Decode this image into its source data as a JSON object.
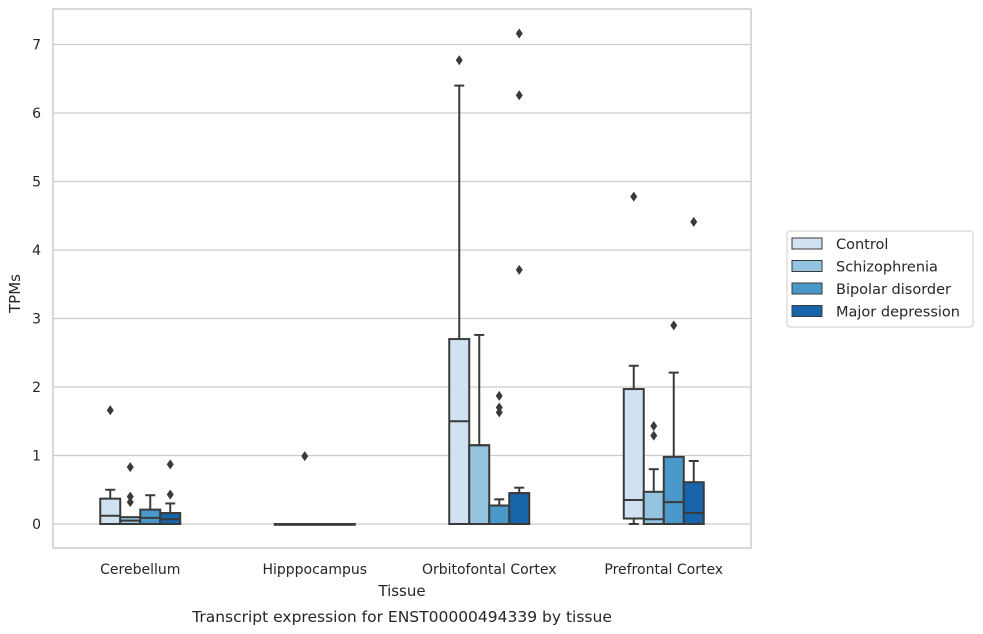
{
  "caption": "Transcript expression for ENST00000494339 by tissue",
  "chart_data": {
    "type": "box",
    "xlabel": "Tissue",
    "ylabel": "TPMs",
    "ylim": [
      -0.35,
      7.5
    ],
    "yticks": [
      0,
      1,
      2,
      3,
      4,
      5,
      6,
      7
    ],
    "grid": "horizontal",
    "legend_position": "right",
    "categories": [
      "Cerebellum",
      "Hipppocampus",
      "Orbitofontal Cortex",
      "Prefrontal Cortex"
    ],
    "series": [
      {
        "name": "Control",
        "color": "#d0e1f2",
        "boxes": [
          {
            "q1": 0.0,
            "median": 0.12,
            "q3": 0.37,
            "whisker_low": 0.0,
            "whisker_high": 0.5,
            "outliers": [
              1.66
            ]
          },
          {
            "q1": 0.0,
            "median": 0.0,
            "q3": 0.0,
            "whisker_low": 0.0,
            "whisker_high": 0.0,
            "outliers": []
          },
          {
            "q1": 0.0,
            "median": 1.5,
            "q3": 2.7,
            "whisker_low": 0.0,
            "whisker_high": 6.4,
            "outliers": [
              6.77
            ]
          },
          {
            "q1": 0.08,
            "median": 0.35,
            "q3": 1.97,
            "whisker_low": 0.0,
            "whisker_high": 2.31,
            "outliers": [
              4.78
            ]
          }
        ]
      },
      {
        "name": "Schizophrenia",
        "color": "#94c4df",
        "boxes": [
          {
            "q1": 0.0,
            "median": 0.05,
            "q3": 0.1,
            "whisker_low": 0.0,
            "whisker_high": 0.1,
            "outliers": [
              0.83,
              0.4,
              0.32
            ]
          },
          {
            "q1": 0.0,
            "median": 0.0,
            "q3": 0.0,
            "whisker_low": 0.0,
            "whisker_high": 0.0,
            "outliers": [
              0.99
            ]
          },
          {
            "q1": 0.0,
            "median": 1.15,
            "q3": 1.15,
            "whisker_low": 0.0,
            "whisker_high": 2.76,
            "outliers": []
          },
          {
            "q1": 0.0,
            "median": 0.07,
            "q3": 0.47,
            "whisker_low": 0.0,
            "whisker_high": 0.8,
            "outliers": [
              1.43,
              1.29
            ]
          }
        ]
      },
      {
        "name": "Bipolar disorder",
        "color": "#4a98c9",
        "boxes": [
          {
            "q1": 0.0,
            "median": 0.09,
            "q3": 0.21,
            "whisker_low": 0.0,
            "whisker_high": 0.42,
            "outliers": []
          },
          {
            "q1": 0.0,
            "median": 0.0,
            "q3": 0.0,
            "whisker_low": 0.0,
            "whisker_high": 0.0,
            "outliers": []
          },
          {
            "q1": 0.0,
            "median": 0.27,
            "q3": 0.27,
            "whisker_low": 0.0,
            "whisker_high": 0.36,
            "outliers": [
              1.87,
              1.7,
              1.63
            ]
          },
          {
            "q1": 0.0,
            "median": 0.32,
            "q3": 0.98,
            "whisker_low": 0.0,
            "whisker_high": 2.21,
            "outliers": [
              2.9
            ]
          }
        ]
      },
      {
        "name": "Major depression",
        "color": "#1764ab",
        "boxes": [
          {
            "q1": 0.0,
            "median": 0.07,
            "q3": 0.16,
            "whisker_low": 0.0,
            "whisker_high": 0.3,
            "outliers": [
              0.87,
              0.43
            ]
          },
          {
            "q1": 0.0,
            "median": 0.0,
            "q3": 0.0,
            "whisker_low": 0.0,
            "whisker_high": 0.0,
            "outliers": []
          },
          {
            "q1": 0.0,
            "median": 0.45,
            "q3": 0.45,
            "whisker_low": 0.0,
            "whisker_high": 0.53,
            "outliers": [
              7.16,
              6.26,
              3.71
            ]
          },
          {
            "q1": 0.0,
            "median": 0.16,
            "q3": 0.61,
            "whisker_low": 0.0,
            "whisker_high": 0.92,
            "outliers": [
              4.41
            ]
          }
        ]
      }
    ]
  }
}
